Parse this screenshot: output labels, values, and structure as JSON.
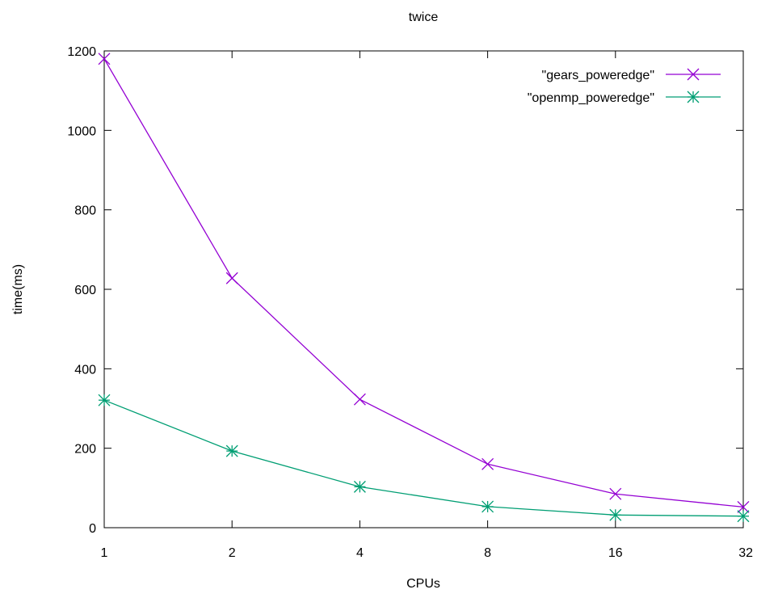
{
  "chart_data": {
    "type": "line",
    "title": "twice",
    "xlabel": "CPUs",
    "ylabel": "time(ms)",
    "x_scale": "log2",
    "x": [
      1,
      2,
      4,
      8,
      16,
      32
    ],
    "x_tick_labels": [
      "1",
      "2",
      "4",
      "8",
      "16",
      "32"
    ],
    "ylim": [
      0,
      1200
    ],
    "y_ticks": [
      0,
      200,
      400,
      600,
      800,
      1000,
      1200
    ],
    "y_tick_labels": [
      "0",
      "200",
      "400",
      "600",
      "800",
      "1000",
      "1200"
    ],
    "grid": false,
    "legend_position": "top-right",
    "series": [
      {
        "name": "\"gears_poweredge\"",
        "values": [
          1180,
          628,
          323,
          160,
          85,
          52
        ],
        "color": "#9400d3",
        "marker": "x"
      },
      {
        "name": "\"openmp_poweredge\"",
        "values": [
          321,
          193,
          103,
          53,
          32,
          29
        ],
        "color": "#009e73",
        "marker": "asterisk"
      }
    ]
  }
}
